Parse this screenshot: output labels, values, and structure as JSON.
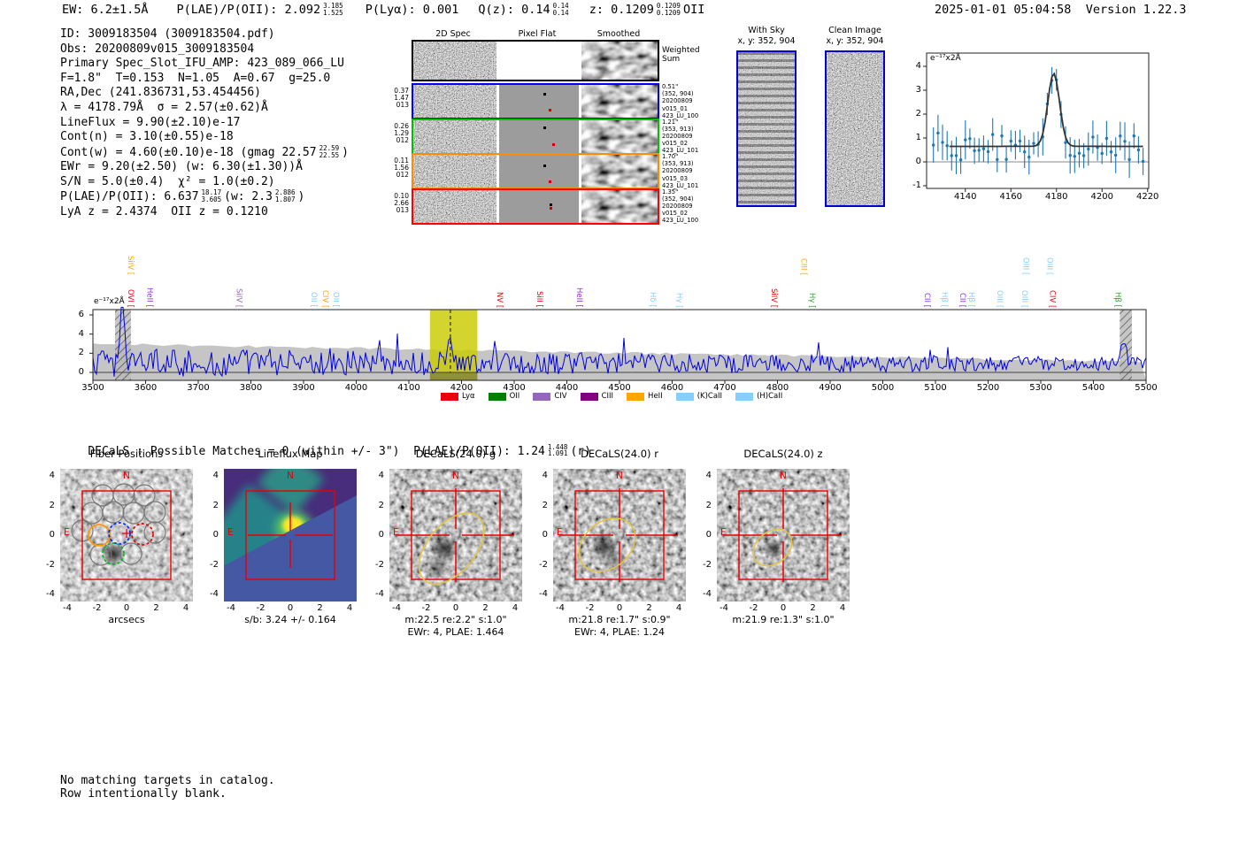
{
  "header": {
    "ew": "EW: 6.2±1.5Å",
    "plae_label": "P(LAE)/P(OII): 2.092",
    "plae_hi": "3.185",
    "plae_lo": "1.525",
    "plya": "P(Lyα): 0.001",
    "qz": "Q(z): 0.14",
    "qz_hi": "0.14",
    "qz_lo": "0.14",
    "z": "z: 0.1209",
    "z_hi": "0.1209",
    "z_lo": "0.1209",
    "ztype": "OII",
    "timestamp": "2025-01-01 05:04:58",
    "version": "Version 1.22.3"
  },
  "summary": {
    "lines": [
      "ID: 3009183504 (3009183504.pdf)",
      "Obs: 20200809v015_3009183504",
      "Primary Spec_Slot_IFU_AMP: 423_089_066_LU",
      "F=1.8\"  T=0.153  N=1.05  A=0.67  g=25.0",
      "RA,Dec (241.836731,53.454456)",
      "λ = 4178.79Å  σ = 2.57(±0.62)Å",
      "LineFlux = 9.90(±2.10)e-17",
      "Cont(n) = 3.10(±0.55)e-18"
    ],
    "contw": {
      "pre": "Cont(w) = 4.60(±0.10)e-18 (gmag 22.57",
      "hi": "22.59",
      "lo": "22.55",
      "post": ")"
    },
    "ewr": "EWr = 9.20(±2.50) (w: 6.30(±1.30))Å",
    "sn": "S/N = 5.0(±0.4)  χ² = 1.0(±0.2)",
    "plae": {
      "pre": "P(LAE)/P(OII): 6.637",
      "hi": "18.17",
      "lo": "3.605",
      "mid": "(w: 2.3",
      "hi2": "2.886",
      "lo2": "1.807",
      "post": ")"
    },
    "zline": "LyA z = 2.4374  OII z = 0.1210"
  },
  "spec2d": {
    "headers": [
      "2D Spec",
      "Pixel Flat",
      "Smoothed"
    ],
    "weighted": [
      "Weighted",
      "Sum"
    ],
    "rows": [
      {
        "color": "#0000ff",
        "left": [
          "0.37",
          "1.47",
          "013"
        ],
        "right": [
          "0.51\"",
          "(352, 904)",
          "20200809",
          "v015_01",
          "423_LU_100"
        ]
      },
      {
        "color": "#00c000",
        "left": [
          "0.26",
          "1.29",
          "012"
        ],
        "right": [
          "1.21\"",
          "(353, 913)",
          "20200809",
          "v015_02",
          "423_LU_101"
        ]
      },
      {
        "color": "#ff8c00",
        "left": [
          "0.11",
          "1.56",
          "012"
        ],
        "right": [
          "1.70\"",
          "(353, 913)",
          "20200809",
          "v015_03",
          "423_LU_101"
        ]
      },
      {
        "color": "#ff0000",
        "left": [
          "0.10",
          "2.66",
          "013"
        ],
        "right": [
          "1.35\"",
          "(352, 904)",
          "20200809",
          "v015_02",
          "423_LU_100"
        ]
      }
    ]
  },
  "cutimgs": {
    "withsky": {
      "title": "With Sky",
      "coords": "x, y: 352, 904"
    },
    "clean": {
      "title": "Clean Image",
      "coords": "x, y: 352, 904"
    }
  },
  "label_colors": {
    "red": "#e8000b",
    "orange": "#ffa500",
    "violet": "#9467bd",
    "purple": "#8a2be2",
    "lightblue": "#87cefa",
    "green": "#2ca02c"
  },
  "chart_data": [
    {
      "name": "full_spectrum",
      "type": "line",
      "flux_label": "e⁻¹⁷x2Å",
      "xlim": [
        3496,
        5504
      ],
      "ylim": [
        -0.9,
        6.9
      ],
      "x_ticks": [
        3500,
        3600,
        3700,
        3800,
        3900,
        4000,
        4100,
        4200,
        4300,
        4400,
        4500,
        4600,
        4700,
        4800,
        4900,
        5000,
        5100,
        5200,
        5300,
        5400,
        5500
      ],
      "y_ticks": [
        0,
        2,
        4,
        6
      ],
      "detection": {
        "wavelength": 4178.79,
        "highlight_band": [
          4140,
          4230
        ],
        "highlight_color": "#c9ca00"
      },
      "masked_bands": [
        [
          3542,
          3572
        ],
        [
          5450,
          5473
        ]
      ],
      "continuum_band": {
        "left_level": 3.0,
        "right_level": 1.1,
        "color": "#c5c5c5"
      },
      "peaks": [
        {
          "wavelength": 3556,
          "height": 7.0,
          "sigma": 4
        },
        {
          "wavelength": 4178.8,
          "height": 2.6,
          "sigma": 3.2
        },
        {
          "wavelength": 5458,
          "height": 2.5,
          "sigma": 5
        }
      ],
      "spectrum_color": "#0000dd",
      "emission_labels": [
        {
          "label": "SiIV",
          "wavelength": 3572,
          "color": "orange",
          "tier": 1
        },
        {
          "label": "OVI",
          "wavelength": 3572,
          "color": "red",
          "tier": 0
        },
        {
          "label": "HeII",
          "wavelength": 3608,
          "color": "purple",
          "tier": 0
        },
        {
          "label": "SiIV",
          "wavelength": 3778,
          "color": "violet",
          "tier": 0
        },
        {
          "label": "OII",
          "wavelength": 3920,
          "color": "lightblue",
          "tier": 0
        },
        {
          "label": "CIV",
          "wavelength": 3942,
          "color": "orange",
          "tier": 0
        },
        {
          "label": "OII",
          "wavelength": 3962,
          "color": "lightblue",
          "tier": 0
        },
        {
          "label": "NV",
          "wavelength": 4273,
          "color": "red",
          "tier": 0
        },
        {
          "label": "SiII",
          "wavelength": 4349,
          "color": "red",
          "tier": 0
        },
        {
          "label": "HeII",
          "wavelength": 4424,
          "color": "purple",
          "tier": 0
        },
        {
          "label": "Hδ",
          "wavelength": 4564,
          "color": "lightblue",
          "tier": 0
        },
        {
          "label": "Hγ",
          "wavelength": 4614,
          "color": "lightblue",
          "tier": 0
        },
        {
          "label": "SiIV",
          "wavelength": 4794,
          "color": "red",
          "tier": 0
        },
        {
          "label": "CIII",
          "wavelength": 4850,
          "color": "orange",
          "tier": 1
        },
        {
          "label": "Hγ",
          "wavelength": 4866,
          "color": "green",
          "tier": 0
        },
        {
          "label": "CII",
          "wavelength": 5085,
          "color": "purple",
          "tier": 0
        },
        {
          "label": "Hβ",
          "wavelength": 5118,
          "color": "lightblue",
          "tier": 0
        },
        {
          "label": "CII",
          "wavelength": 5152,
          "color": "purple",
          "tier": 0
        },
        {
          "label": "Hβ",
          "wavelength": 5169,
          "color": "lightblue",
          "tier": 0
        },
        {
          "label": "OIII",
          "wavelength": 5223,
          "color": "lightblue",
          "tier": 0
        },
        {
          "label": "OIII",
          "wavelength": 5270,
          "color": "lightblue",
          "tier": 0
        },
        {
          "label": "OIII",
          "wavelength": 5272,
          "color": "lightblue",
          "tier": 1
        },
        {
          "label": "OIII",
          "wavelength": 5318,
          "color": "lightblue",
          "tier": 1
        },
        {
          "label": "CIV",
          "wavelength": 5323,
          "color": "red",
          "tier": 0
        },
        {
          "label": "Hβ",
          "wavelength": 5447,
          "color": "green",
          "tier": 0
        }
      ],
      "legend": [
        {
          "label": "Lyα",
          "color": "#e8000b"
        },
        {
          "label": "OII",
          "color": "#008000"
        },
        {
          "label": "CIV",
          "color": "#9467bd"
        },
        {
          "label": "CIII",
          "color": "#800080"
        },
        {
          "label": "HeII",
          "color": "#ffa500"
        },
        {
          "label": "(K)CaII",
          "color": "#87cefa"
        },
        {
          "label": "(H)CaII",
          "color": "#87cefa"
        }
      ]
    },
    {
      "name": "detail_line_fit",
      "type": "scatter_fit",
      "flux_label": "e⁻¹⁷x2Å",
      "xlim": [
        4123,
        4220.5
      ],
      "ylim": [
        -1.1,
        4.56
      ],
      "x_ticks": [
        4140,
        4160,
        4180,
        4200,
        4220
      ],
      "y_ticks": [
        -1,
        0,
        1,
        2,
        3,
        4
      ],
      "gaussian": {
        "center": 4178.79,
        "sigma": 2.57,
        "amplitude": 3.05,
        "continuum": 0.65
      },
      "point_color": "#1f77b4",
      "fit_color": "#333333"
    }
  ],
  "cutouts": {
    "intro": {
      "pre": "DECaLS : Possible Matches = 0 (within +/- 3\")  P(LAE)/P(OII): 1.24",
      "hi": "1.448",
      "lo": "1.091",
      "post": "(r)"
    },
    "compass": {
      "n": "N",
      "e": "E"
    },
    "ticks": [
      -4,
      -2,
      0,
      2,
      4
    ],
    "panels": [
      {
        "title": "Fiber Positions",
        "xlabel": "arcsecs",
        "fiber_colors": {
          "selected1": "#ff9800",
          "selected2": "#0026ff",
          "selected3": "#e80000",
          "selected4": "#00b42a"
        }
      },
      {
        "title": "Lineflux Map",
        "caption1": "s/b: 3.24 +/- 0.164"
      },
      {
        "title": "DECaLS(24.0) g",
        "caption1": "m:22.5  re:2.2\"  s:1.0\"",
        "caption2": "EWr: 4, PLAE: 1.464"
      },
      {
        "title": "DECaLS(24.0) r",
        "caption1": "m:21.8  re:1.7\"  s:0.9\"",
        "caption2": "EWr: 4, PLAE: 1.24"
      },
      {
        "title": "DECaLS(24.0) z",
        "caption1": "m:21.9  re:1.3\"  s:1.0\""
      }
    ]
  },
  "footer": {
    "line1": "No matching targets in catalog.",
    "line2": "Row intentionally blank."
  }
}
